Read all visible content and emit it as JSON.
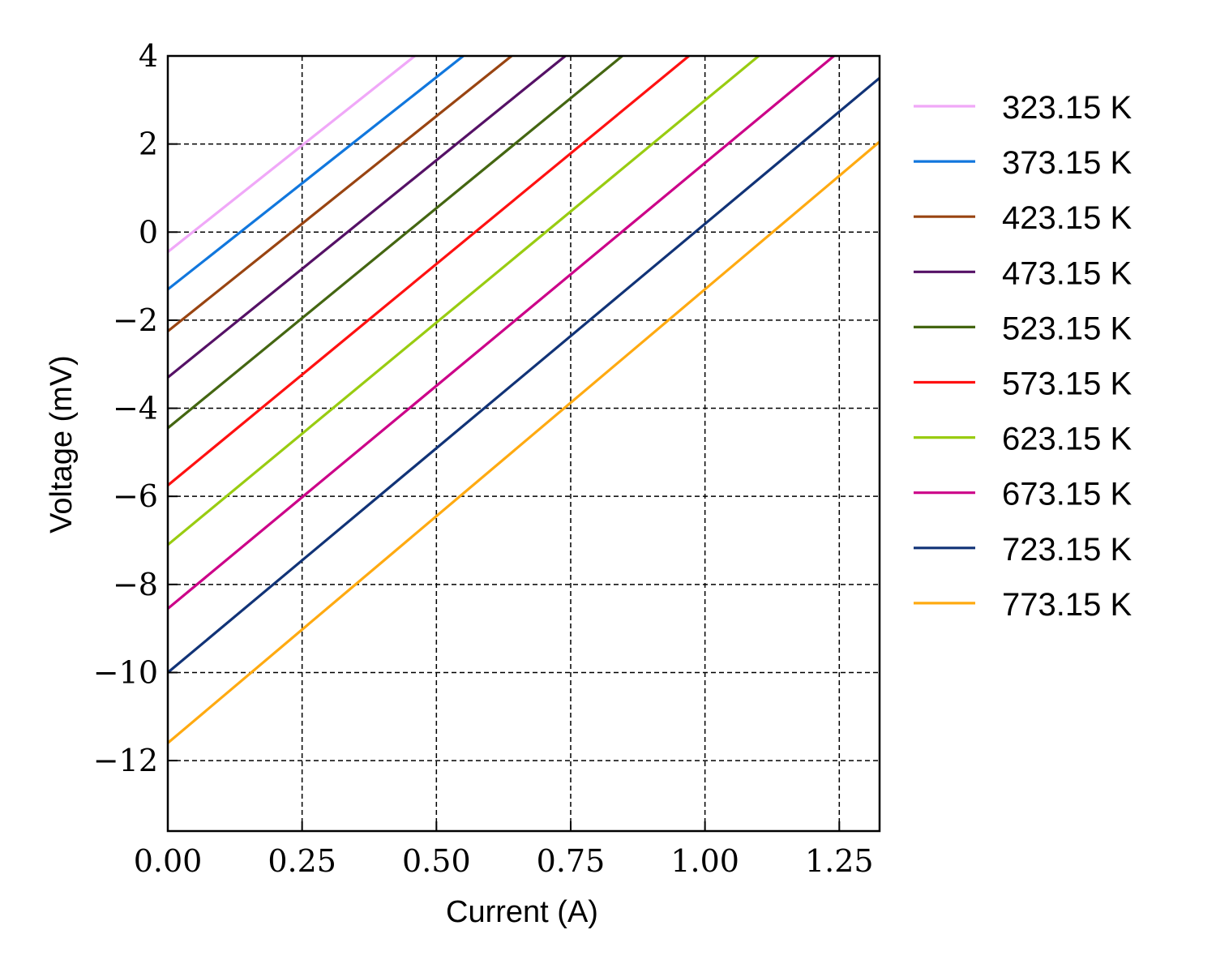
{
  "chart_data": {
    "type": "line",
    "xlabel": "Current (A)",
    "ylabel": "Voltage (mV)",
    "xlim": [
      0,
      1.325
    ],
    "ylim": [
      -13.6,
      4
    ],
    "x_ticks": [
      0,
      0.25,
      0.5,
      0.75,
      1.0,
      1.25
    ],
    "x_tick_labels": [
      "0.00",
      "0.25",
      "0.50",
      "0.75",
      "1.00",
      "1.25"
    ],
    "y_ticks": [
      4,
      2,
      0,
      -2,
      -4,
      -6,
      -8,
      -10,
      -12
    ],
    "y_tick_labels": [
      "4",
      "2",
      "0",
      "−2",
      "−4",
      "−6",
      "−8",
      "−10",
      "−12"
    ],
    "grid": true,
    "grid_style": "dashed",
    "legend_position": "outside-right",
    "series": [
      {
        "name": "323.15 K",
        "color": "#f0a8f8",
        "x": [
          0,
          0.46
        ],
        "y": [
          -0.45,
          4.0
        ]
      },
      {
        "name": "373.15 K",
        "color": "#1177dd",
        "x": [
          0,
          0.55
        ],
        "y": [
          -1.3,
          4.0
        ]
      },
      {
        "name": "423.15 K",
        "color": "#994411",
        "x": [
          0,
          0.64
        ],
        "y": [
          -2.25,
          4.0
        ]
      },
      {
        "name": "473.15 K",
        "color": "#551166",
        "x": [
          0,
          0.74
        ],
        "y": [
          -3.3,
          4.0
        ]
      },
      {
        "name": "523.15 K",
        "color": "#446611",
        "x": [
          0,
          0.846
        ],
        "y": [
          -4.45,
          4.0
        ]
      },
      {
        "name": "573.15 K",
        "color": "#ff1111",
        "x": [
          0,
          0.97
        ],
        "y": [
          -5.75,
          4.0
        ]
      },
      {
        "name": "623.15 K",
        "color": "#99cc11",
        "x": [
          0,
          1.1
        ],
        "y": [
          -7.1,
          4.0
        ]
      },
      {
        "name": "673.15 K",
        "color": "#cc0088",
        "x": [
          0,
          1.24
        ],
        "y": [
          -8.55,
          4.0
        ]
      },
      {
        "name": "723.15 K",
        "color": "#113377",
        "x": [
          0,
          1.325
        ],
        "y": [
          -10.0,
          3.5
        ]
      },
      {
        "name": "773.15 K",
        "color": "#ffaa11",
        "x": [
          0,
          1.325
        ],
        "y": [
          -11.6,
          2.05
        ]
      }
    ]
  }
}
